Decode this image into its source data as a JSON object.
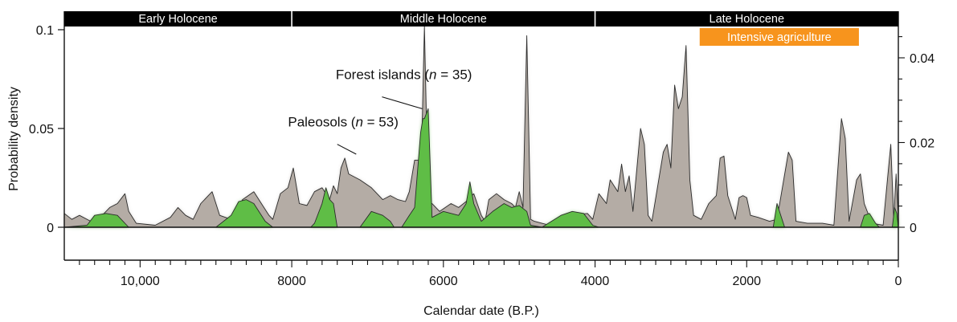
{
  "chart_data": {
    "type": "area",
    "title": "",
    "xlabel": "Calendar date (B.P.)",
    "ylabel": "Probability density",
    "x_reversed": true,
    "xlim": [
      11000,
      0
    ],
    "ylim_left": [
      0,
      0.1
    ],
    "ylim_right": [
      0,
      0.04
    ],
    "x_ticks": [
      {
        "value": 10000,
        "label": "10,000"
      },
      {
        "value": 8000,
        "label": "8000"
      },
      {
        "value": 6000,
        "label": "6000"
      },
      {
        "value": 4000,
        "label": "4000"
      },
      {
        "value": 2000,
        "label": "2000"
      },
      {
        "value": 0,
        "label": "0"
      }
    ],
    "y_ticks_left": [
      {
        "value": 0,
        "label": "0"
      },
      {
        "value": 0.05,
        "label": "0.05"
      },
      {
        "value": 0.1,
        "label": "0.1"
      }
    ],
    "y_ticks_right": [
      {
        "value": 0,
        "label": "0"
      },
      {
        "value": 0.02,
        "label": "0.02"
      },
      {
        "value": 0.04,
        "label": "0.04"
      }
    ],
    "periods": [
      {
        "label": "Early Holocene",
        "from": 11000,
        "to": 8000
      },
      {
        "label": "Middle Holocene",
        "from": 8000,
        "to": 4000
      },
      {
        "label": "Late Holocene",
        "from": 4000,
        "to": 0
      }
    ],
    "highlight": {
      "label": "Intensive agriculture",
      "from": 2620,
      "to": 520,
      "color": "#f7941d"
    },
    "series": [
      {
        "name": "Paleosols (n = 53)",
        "label_text": "Paleosols (",
        "n_symbol": "n",
        "n_suffix": " = 53)",
        "color": "#b4aca5",
        "axis": "left",
        "points": [
          [
            11000,
            0.007
          ],
          [
            10900,
            0.004
          ],
          [
            10800,
            0.006
          ],
          [
            10650,
            0.003
          ],
          [
            10500,
            0.006
          ],
          [
            10400,
            0.01
          ],
          [
            10300,
            0.012
          ],
          [
            10200,
            0.017
          ],
          [
            10150,
            0.008
          ],
          [
            10050,
            0.002
          ],
          [
            9800,
            0.001
          ],
          [
            9600,
            0.005
          ],
          [
            9500,
            0.01
          ],
          [
            9400,
            0.006
          ],
          [
            9300,
            0.004
          ],
          [
            9200,
            0.012
          ],
          [
            9100,
            0.016
          ],
          [
            9050,
            0.018
          ],
          [
            8950,
            0.006
          ],
          [
            8800,
            0.004
          ],
          [
            8650,
            0.014
          ],
          [
            8500,
            0.018
          ],
          [
            8400,
            0.012
          ],
          [
            8300,
            0.006
          ],
          [
            8250,
            0.004
          ],
          [
            8150,
            0.017
          ],
          [
            8050,
            0.02
          ],
          [
            7980,
            0.03
          ],
          [
            7900,
            0.012
          ],
          [
            7800,
            0.011
          ],
          [
            7700,
            0.018
          ],
          [
            7600,
            0.02
          ],
          [
            7500,
            0.014
          ],
          [
            7450,
            0.021
          ],
          [
            7400,
            0.017
          ],
          [
            7350,
            0.03
          ],
          [
            7300,
            0.035
          ],
          [
            7250,
            0.027
          ],
          [
            7100,
            0.024
          ],
          [
            6950,
            0.02
          ],
          [
            6800,
            0.014
          ],
          [
            6700,
            0.016
          ],
          [
            6600,
            0.014
          ],
          [
            6500,
            0.013
          ],
          [
            6450,
            0.018
          ],
          [
            6380,
            0.034
          ],
          [
            6320,
            0.034
          ],
          [
            6300,
            0.016
          ],
          [
            6250,
            0.102
          ],
          [
            6200,
            0.012
          ],
          [
            6150,
            0.012
          ],
          [
            6050,
            0.008
          ],
          [
            5900,
            0.012
          ],
          [
            5800,
            0.01
          ],
          [
            5700,
            0.013
          ],
          [
            5600,
            0.017
          ],
          [
            5500,
            0.006
          ],
          [
            5450,
            0.003
          ],
          [
            5400,
            0.014
          ],
          [
            5300,
            0.017
          ],
          [
            5200,
            0.014
          ],
          [
            5100,
            0.012
          ],
          [
            5050,
            0.01
          ],
          [
            5000,
            0.018
          ],
          [
            4950,
            0.01
          ],
          [
            4900,
            0.097
          ],
          [
            4850,
            0.004
          ],
          [
            4800,
            0.003
          ],
          [
            4700,
            0.002
          ],
          [
            4600,
            0.001
          ],
          [
            4300,
            0.006
          ],
          [
            4100,
            0.007
          ],
          [
            4030,
            0.004
          ],
          [
            3950,
            0.017
          ],
          [
            3850,
            0.012
          ],
          [
            3800,
            0.024
          ],
          [
            3700,
            0.018
          ],
          [
            3650,
            0.032
          ],
          [
            3600,
            0.018
          ],
          [
            3550,
            0.026
          ],
          [
            3500,
            0.008
          ],
          [
            3400,
            0.05
          ],
          [
            3350,
            0.042
          ],
          [
            3300,
            0.006
          ],
          [
            3250,
            0.003
          ],
          [
            3100,
            0.038
          ],
          [
            3050,
            0.042
          ],
          [
            3000,
            0.03
          ],
          [
            2950,
            0.072
          ],
          [
            2900,
            0.06
          ],
          [
            2850,
            0.066
          ],
          [
            2800,
            0.092
          ],
          [
            2750,
            0.024
          ],
          [
            2700,
            0.006
          ],
          [
            2600,
            0.004
          ],
          [
            2500,
            0.012
          ],
          [
            2400,
            0.016
          ],
          [
            2350,
            0.035
          ],
          [
            2300,
            0.036
          ],
          [
            2250,
            0.016
          ],
          [
            2150,
            0.004
          ],
          [
            2100,
            0.015
          ],
          [
            2050,
            0.016
          ],
          [
            2000,
            0.015
          ],
          [
            1950,
            0.006
          ],
          [
            1850,
            0.005
          ],
          [
            1700,
            0.003
          ],
          [
            1600,
            0.004
          ],
          [
            1450,
            0.038
          ],
          [
            1400,
            0.034
          ],
          [
            1350,
            0.003
          ],
          [
            1200,
            0.002
          ],
          [
            1000,
            0.002
          ],
          [
            850,
            0.001
          ],
          [
            750,
            0.055
          ],
          [
            700,
            0.045
          ],
          [
            650,
            0.003
          ],
          [
            550,
            0.024
          ],
          [
            500,
            0.027
          ],
          [
            450,
            0.012
          ],
          [
            350,
            0.002
          ],
          [
            200,
            0.001
          ],
          [
            100,
            0.042
          ],
          [
            60,
            0.003
          ],
          [
            30,
            0.027
          ],
          [
            0,
            0.005
          ]
        ]
      },
      {
        "name": "Forest islands (n = 35)",
        "label_text": "Forest islands (",
        "n_symbol": "n",
        "n_suffix": " = 35)",
        "color": "#5fbd46",
        "axis": "left",
        "points": [
          [
            11000,
            0.0
          ],
          [
            10700,
            0.001
          ],
          [
            10600,
            0.006
          ],
          [
            10450,
            0.007
          ],
          [
            10300,
            0.006
          ],
          [
            10150,
            0.0
          ],
          [
            9000,
            0.0
          ],
          [
            8800,
            0.006
          ],
          [
            8700,
            0.013
          ],
          [
            8600,
            0.014
          ],
          [
            8500,
            0.012
          ],
          [
            8350,
            0.003
          ],
          [
            8250,
            0.0
          ],
          [
            7750,
            0.0
          ],
          [
            7700,
            0.002
          ],
          [
            7600,
            0.012
          ],
          [
            7550,
            0.02
          ],
          [
            7500,
            0.014
          ],
          [
            7450,
            0.012
          ],
          [
            7400,
            0.0
          ],
          [
            7100,
            0.0
          ],
          [
            6950,
            0.008
          ],
          [
            6800,
            0.006
          ],
          [
            6700,
            0.003
          ],
          [
            6650,
            0.0
          ],
          [
            6550,
            0.0
          ],
          [
            6450,
            0.006
          ],
          [
            6380,
            0.01
          ],
          [
            6300,
            0.048
          ],
          [
            6270,
            0.055
          ],
          [
            6250,
            0.055
          ],
          [
            6200,
            0.06
          ],
          [
            6150,
            0.005
          ],
          [
            6000,
            0.008
          ],
          [
            5800,
            0.006
          ],
          [
            5700,
            0.012
          ],
          [
            5650,
            0.023
          ],
          [
            5600,
            0.012
          ],
          [
            5500,
            0.003
          ],
          [
            5350,
            0.008
          ],
          [
            5200,
            0.012
          ],
          [
            5100,
            0.01
          ],
          [
            5000,
            0.011
          ],
          [
            4900,
            0.008
          ],
          [
            4850,
            0.001
          ],
          [
            4700,
            0.0
          ],
          [
            4450,
            0.006
          ],
          [
            4300,
            0.008
          ],
          [
            4150,
            0.007
          ],
          [
            4030,
            0.001
          ],
          [
            3950,
            0.0
          ],
          [
            1650,
            0.0
          ],
          [
            1600,
            0.012
          ],
          [
            1550,
            0.006
          ],
          [
            1500,
            0.0
          ],
          [
            500,
            0.0
          ],
          [
            450,
            0.006
          ],
          [
            380,
            0.007
          ],
          [
            300,
            0.002
          ],
          [
            250,
            0.0
          ],
          [
            80,
            0.0
          ],
          [
            50,
            0.01
          ],
          [
            20,
            0.007
          ],
          [
            0,
            0.0
          ]
        ]
      }
    ],
    "annotations": [
      {
        "series": 0,
        "text_x": 8050,
        "text_y": 0.051,
        "line_from": [
          7400,
          0.042
        ],
        "line_to": [
          7150,
          0.037
        ]
      },
      {
        "series": 1,
        "text_x": 7420,
        "text_y": 0.075,
        "line_from": [
          6810,
          0.066
        ],
        "line_to": [
          6280,
          0.06
        ]
      }
    ]
  }
}
